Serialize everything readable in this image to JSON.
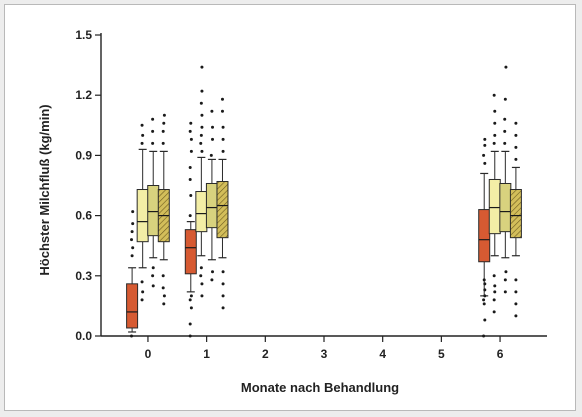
{
  "chart_data": {
    "type": "box",
    "xlabel": "Monate nach Behandlung",
    "ylabel": "Höchster Milchfluß (kg/min)",
    "ylim": [
      0,
      1.5
    ],
    "yticks": [
      "0.0",
      "0.3",
      "0.6",
      "0.9",
      "1.2",
      "1.5"
    ],
    "xlim": [
      -0.8,
      6.8
    ],
    "xticks": [
      "0",
      "1",
      "2",
      "3",
      "4",
      "5",
      "6"
    ],
    "legend": "none",
    "grid": false,
    "series": [
      {
        "color": "#d65a32",
        "hatch": false,
        "offset": -0.27,
        "boxes": [
          {
            "x": 0,
            "whisker_low": 0.02,
            "q1": 0.04,
            "median": 0.12,
            "q3": 0.26,
            "whisker_high": 0.34,
            "outliers": [
              0.0,
              0.4,
              0.44,
              0.48,
              0.52,
              0.56,
              0.62
            ]
          },
          {
            "x": 1,
            "whisker_low": 0.22,
            "q1": 0.31,
            "median": 0.44,
            "q3": 0.53,
            "whisker_high": 0.57,
            "outliers": [
              0.0,
              0.06,
              0.14,
              0.18,
              0.2,
              0.6,
              0.7,
              0.78,
              0.84,
              0.92,
              0.98,
              1.02,
              1.06
            ]
          },
          {
            "x": 6,
            "whisker_low": 0.2,
            "q1": 0.37,
            "median": 0.48,
            "q3": 0.63,
            "whisker_high": 0.81,
            "outliers": [
              0.0,
              0.08,
              0.16,
              0.18,
              0.2,
              0.23,
              0.26,
              0.28,
              0.86,
              0.9,
              0.95,
              0.98
            ]
          }
        ]
      },
      {
        "color": "#f3eea6",
        "hatch": false,
        "offset": -0.09,
        "boxes": [
          {
            "x": 0,
            "whisker_low": 0.34,
            "q1": 0.47,
            "median": 0.57,
            "q3": 0.73,
            "whisker_high": 0.93,
            "outliers": [
              0.18,
              0.22,
              0.27,
              0.96,
              1.0,
              1.05
            ]
          },
          {
            "x": 1,
            "whisker_low": 0.4,
            "q1": 0.52,
            "median": 0.61,
            "q3": 0.72,
            "whisker_high": 0.89,
            "outliers": [
              0.2,
              0.26,
              0.3,
              0.34,
              0.92,
              0.96,
              1.0,
              1.04,
              1.1,
              1.16,
              1.22,
              1.34
            ]
          },
          {
            "x": 6,
            "whisker_low": 0.4,
            "q1": 0.51,
            "median": 0.64,
            "q3": 0.78,
            "whisker_high": 0.92,
            "outliers": [
              0.12,
              0.18,
              0.22,
              0.25,
              0.3,
              0.96,
              1.0,
              1.06,
              1.12,
              1.2
            ]
          }
        ]
      },
      {
        "color": "#d8d27e",
        "hatch": false,
        "offset": 0.09,
        "boxes": [
          {
            "x": 0,
            "whisker_low": 0.39,
            "q1": 0.5,
            "median": 0.62,
            "q3": 0.75,
            "whisker_high": 0.92,
            "outliers": [
              0.25,
              0.3,
              0.34,
              0.96,
              1.02,
              1.08
            ]
          },
          {
            "x": 1,
            "whisker_low": 0.38,
            "q1": 0.54,
            "median": 0.64,
            "q3": 0.76,
            "whisker_high": 0.88,
            "outliers": [
              0.28,
              0.32,
              0.9,
              0.98,
              1.04,
              1.12
            ]
          },
          {
            "x": 6,
            "whisker_low": 0.39,
            "q1": 0.52,
            "median": 0.62,
            "q3": 0.76,
            "whisker_high": 0.92,
            "outliers": [
              0.22,
              0.28,
              0.32,
              0.96,
              1.02,
              1.08,
              1.18,
              1.34
            ]
          }
        ]
      },
      {
        "color": "#d3be5a",
        "hatch": true,
        "offset": 0.27,
        "boxes": [
          {
            "x": 0,
            "whisker_low": 0.38,
            "q1": 0.47,
            "median": 0.6,
            "q3": 0.73,
            "whisker_high": 0.92,
            "outliers": [
              0.16,
              0.2,
              0.24,
              0.3,
              0.96,
              1.02,
              1.06,
              1.1
            ]
          },
          {
            "x": 1,
            "whisker_low": 0.39,
            "q1": 0.49,
            "median": 0.65,
            "q3": 0.77,
            "whisker_high": 0.88,
            "outliers": [
              0.14,
              0.2,
              0.26,
              0.32,
              0.92,
              0.98,
              1.04,
              1.12,
              1.18
            ]
          },
          {
            "x": 6,
            "whisker_low": 0.4,
            "q1": 0.49,
            "median": 0.6,
            "q3": 0.73,
            "whisker_high": 0.84,
            "outliers": [
              0.1,
              0.16,
              0.22,
              0.28,
              0.88,
              0.94,
              1.0,
              1.06
            ]
          }
        ]
      }
    ]
  }
}
